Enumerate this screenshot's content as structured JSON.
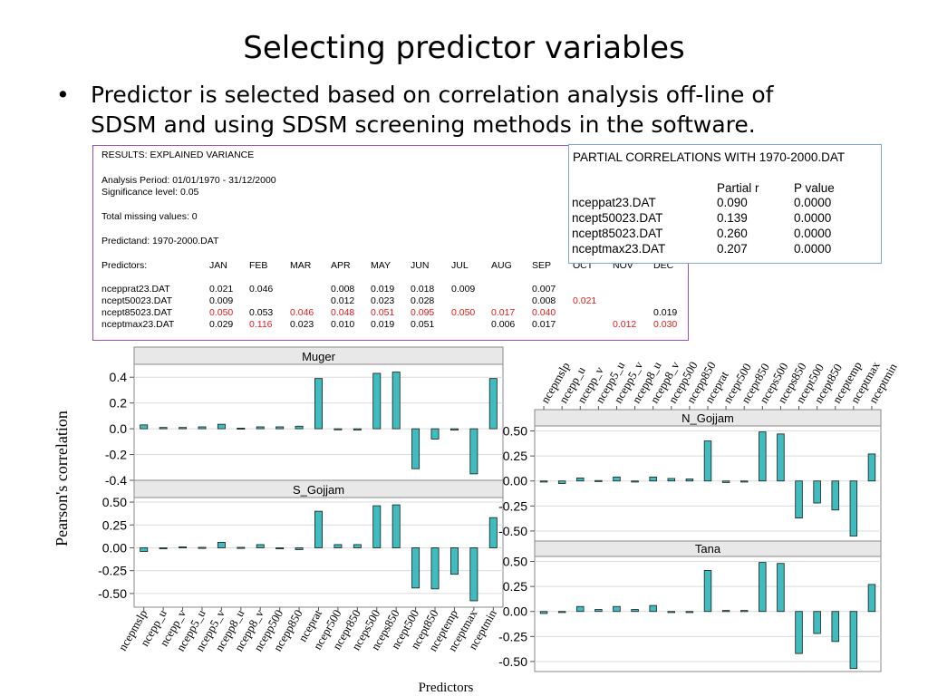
{
  "slide": {
    "title": "Selecting predictor variables",
    "bullet_symbol": "•",
    "bullet": "Predictor is selected based on correlation analysis off-line of SDSM and using SDSM screening methods in the software."
  },
  "results": {
    "title": "RESULTS: EXPLAINED VARIANCE",
    "analysis_period": "Analysis Period: 01/01/1970 - 31/12/2000",
    "significance": "Significance level:  0.05",
    "missing": "Total missing values:  0",
    "predictand": "Predictand: 1970-2000.DAT",
    "predictors_label": "Predictors:",
    "months": [
      "JAN",
      "FEB",
      "MAR",
      "APR",
      "MAY",
      "JUN",
      "JUL",
      "AUG",
      "SEP",
      "OCT",
      "NOV",
      "DEC"
    ],
    "rows": [
      {
        "name": "ncepprat23.DAT",
        "values": [
          "0.021",
          "0.046",
          "",
          "0.008",
          "0.019",
          "0.018",
          "0.009",
          "",
          "0.007",
          "",
          "",
          ""
        ],
        "red": []
      },
      {
        "name": "ncept50023.DAT",
        "values": [
          "0.009",
          "",
          "",
          "0.012",
          "0.023",
          "0.028",
          "",
          "",
          "0.008",
          "0.021",
          "",
          ""
        ],
        "red": [
          9
        ]
      },
      {
        "name": "ncept85023.DAT",
        "values": [
          "0.050",
          "0.053",
          "0.046",
          "0.048",
          "0.051",
          "0.095",
          "0.050",
          "0.017",
          "0.040",
          "",
          "",
          "0.019"
        ],
        "red": [
          0,
          2,
          3,
          4,
          5,
          6,
          7,
          8
        ]
      },
      {
        "name": "nceptmax23.DAT",
        "values": [
          "0.029",
          "0.116",
          "0.023",
          "0.010",
          "0.019",
          "0.051",
          "",
          "0.006",
          "0.017",
          "",
          "0.012",
          "0.030"
        ],
        "red": [
          1,
          10,
          11
        ]
      }
    ]
  },
  "partial": {
    "title": "PARTIAL CORRELATIONS WITH 1970-2000.DAT",
    "col1": "Partial r",
    "col2": "P value",
    "rows": [
      {
        "name": "nceppat23.DAT",
        "r": "0.090",
        "p": "0.0000"
      },
      {
        "name": "ncept50023.DAT",
        "r": "0.139",
        "p": "0.0000"
      },
      {
        "name": "ncept85023.DAT",
        "r": "0.260",
        "p": "0.0000"
      },
      {
        "name": "nceptmax23.DAT",
        "r": "0.207",
        "p": "0.0000"
      }
    ]
  },
  "chart_data": [
    {
      "type": "bar",
      "title": "Muger",
      "ylim": [
        -0.4,
        0.5
      ],
      "ticks": [
        "0.4",
        "0.2",
        "0.0",
        "-0.2",
        "-0.4"
      ],
      "categories": [
        "ncepmslp",
        "ncepp_u",
        "ncepp_v",
        "ncepp5_u",
        "ncepp5_v",
        "ncepp8_u",
        "ncepp8_v",
        "ncepp500",
        "ncepp850",
        "nceprat",
        "ncepr500",
        "ncepr850",
        "nceps500",
        "nceps850",
        "ncept500",
        "ncept850",
        "nceptemp",
        "nceptmax",
        "nceptmin"
      ],
      "values": [
        0.03,
        0.01,
        0.01,
        0.015,
        0.035,
        0.005,
        0.015,
        0.015,
        0.02,
        0.39,
        0.0,
        -0.01,
        0.43,
        0.44,
        -0.31,
        -0.08,
        -0.01,
        -0.35,
        0.39
      ],
      "ylabel": "Pearson's correlation"
    },
    {
      "type": "bar",
      "title": "S_Gojjam",
      "ylim": [
        -0.65,
        0.55
      ],
      "ticks": [
        "0.50",
        "0.25",
        "0.00",
        "-0.25",
        "-0.50"
      ],
      "categories": [
        "ncepmslp",
        "ncepp_u",
        "ncepp_v",
        "ncepp5_u",
        "ncepp5_v",
        "ncepp8_u",
        "ncepp8_v",
        "ncepp500",
        "ncepp850",
        "nceprat",
        "ncepr500",
        "ncepr850",
        "nceps500",
        "nceps850",
        "ncept500",
        "ncept850",
        "nceptemp",
        "nceptmax",
        "nceptmin"
      ],
      "values": [
        -0.04,
        -0.005,
        0.01,
        0.005,
        0.06,
        0.005,
        0.035,
        -0.01,
        -0.02,
        0.4,
        0.035,
        0.035,
        0.46,
        0.47,
        -0.44,
        -0.45,
        -0.29,
        -0.58,
        0.33
      ],
      "xlabel": "Predictors"
    },
    {
      "type": "bar",
      "title": "N_Gojjam",
      "ylim": [
        -0.6,
        0.55
      ],
      "ticks": [
        "0.50",
        "0.25",
        "0.00",
        "-0.25",
        "-0.50"
      ],
      "categories": [
        "ncepmslp",
        "ncepp_u",
        "ncepp_v",
        "ncepp5_u",
        "ncepp5_v",
        "ncepp8_u",
        "ncepp8_v",
        "ncepp500",
        "ncepp850",
        "nceprat",
        "ncepr500",
        "ncepr850",
        "nceps500",
        "nceps850",
        "ncept500",
        "ncept850",
        "nceptemp",
        "nceptmax",
        "nceptmin"
      ],
      "values": [
        0.0,
        -0.025,
        0.03,
        0.005,
        0.04,
        -0.01,
        0.04,
        0.025,
        0.02,
        0.4,
        -0.015,
        -0.01,
        0.49,
        0.47,
        -0.37,
        -0.22,
        -0.29,
        -0.55,
        0.27
      ]
    },
    {
      "type": "bar",
      "title": "Tana",
      "ylim": [
        -0.6,
        0.55
      ],
      "ticks": [
        "0.50",
        "0.25",
        "0.00",
        "-0.25",
        "-0.50"
      ],
      "categories": [
        "ncepmslp",
        "ncepp_u",
        "ncepp_v",
        "ncepp5_u",
        "ncepp5_v",
        "ncepp8_u",
        "ncepp8_v",
        "ncepp500",
        "ncepp850",
        "nceprat",
        "ncepr500",
        "ncepr850",
        "nceps500",
        "nceps850",
        "ncept500",
        "ncept850",
        "nceptemp",
        "nceptmax",
        "nceptmin"
      ],
      "values": [
        -0.02,
        -0.01,
        0.05,
        0.02,
        0.05,
        0.02,
        0.06,
        -0.005,
        -0.01,
        0.41,
        0.01,
        0.01,
        0.49,
        0.48,
        -0.42,
        -0.22,
        -0.3,
        -0.57,
        0.27
      ]
    }
  ]
}
